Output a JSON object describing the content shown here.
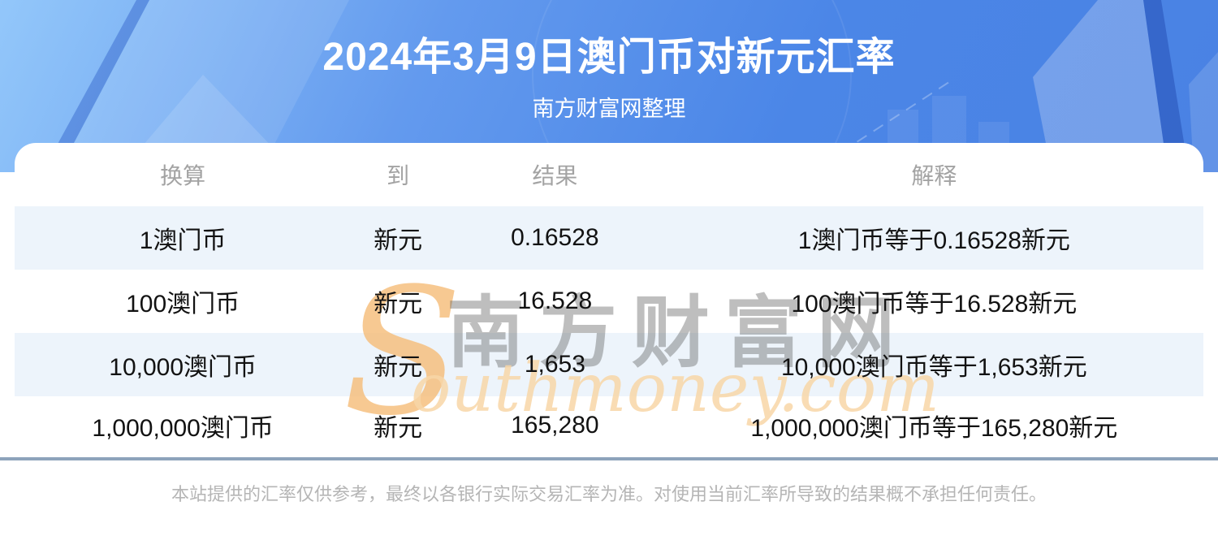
{
  "header": {
    "title": "2024年3月9日澳门币对新元汇率",
    "subtitle": "南方财富网整理"
  },
  "table": {
    "columns": [
      "换算",
      "到",
      "结果",
      "解释"
    ],
    "rows": [
      [
        "1澳门币",
        "新元",
        "0.16528",
        "1澳门币等于0.16528新元"
      ],
      [
        "100澳门币",
        "新元",
        "16.528",
        "100澳门币等于16.528新元"
      ],
      [
        "10,000澳门币",
        "新元",
        "1,653",
        "10,000澳门币等于1,653新元"
      ],
      [
        "1,000,000澳门币",
        "新元",
        "165,280",
        "1,000,000澳门币等于165,280新元"
      ]
    ]
  },
  "watermark": {
    "initial": "S",
    "text": "outhmoney.com",
    "cn": "南方财富网"
  },
  "footer": {
    "disclaimer": "本站提供的汇率仅供参考，最终以各银行实际交易汇率为准。对使用当前汇率所导致的结果概不承担任何责任。"
  },
  "colors": {
    "hero_blue": "#4b86e7",
    "hero_light_blue": "#93c7fa",
    "row_alt": "#edf4fb",
    "divider": "#8da3bb",
    "watermark_orange": "#f6bc77",
    "header_text_gray": "#a3a3a3"
  }
}
